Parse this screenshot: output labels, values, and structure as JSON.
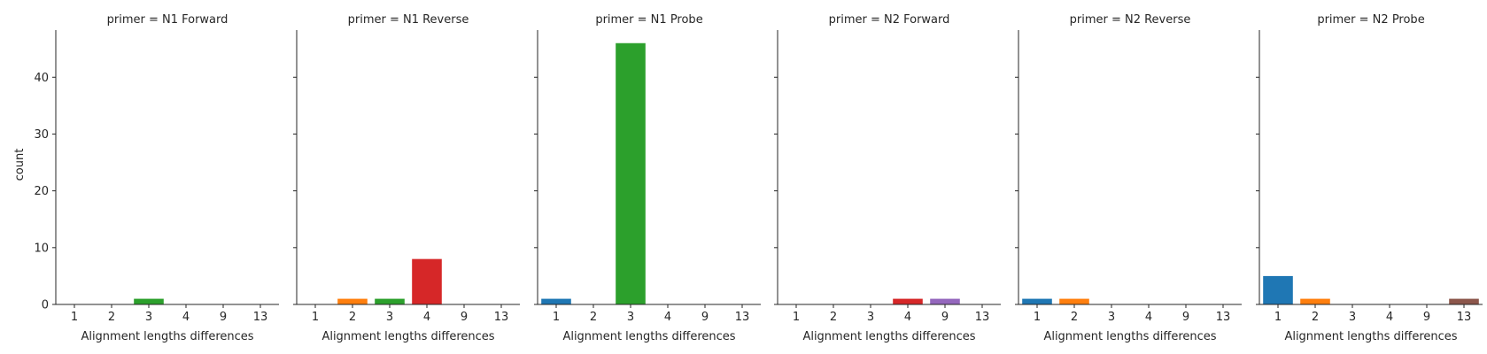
{
  "chart_data": {
    "type": "bar",
    "facet_variable": "primer",
    "facet_title_template": "primer = {}",
    "categories": [
      "1",
      "2",
      "3",
      "4",
      "9",
      "13"
    ],
    "category_colors": [
      "#1f77b4",
      "#ff7f0e",
      "#2ca02c",
      "#d62728",
      "#9467bd",
      "#8c564b"
    ],
    "xlabel": "Alignment lengths differences",
    "ylabel": "count",
    "ylim": [
      0,
      48.3
    ],
    "yticks": [
      0,
      10,
      20,
      30,
      40
    ],
    "grid": false,
    "panels": [
      {
        "name": "N1 Forward",
        "title": "primer = N1 Forward",
        "values": [
          0,
          0,
          1,
          0,
          0,
          0
        ]
      },
      {
        "name": "N1 Reverse",
        "title": "primer = N1 Reverse",
        "values": [
          0,
          1,
          1,
          8,
          0,
          0
        ]
      },
      {
        "name": "N1 Probe",
        "title": "primer = N1 Probe",
        "values": [
          1,
          0,
          46,
          0,
          0,
          0
        ]
      },
      {
        "name": "N2 Forward",
        "title": "primer = N2 Forward",
        "values": [
          0,
          0,
          0,
          1,
          1,
          0
        ]
      },
      {
        "name": "N2 Reverse",
        "title": "primer = N2 Reverse",
        "values": [
          1,
          1,
          0,
          0,
          0,
          0
        ]
      },
      {
        "name": "N2 Probe",
        "title": "primer = N2 Probe",
        "values": [
          5,
          1,
          0,
          0,
          0,
          1
        ]
      }
    ]
  }
}
